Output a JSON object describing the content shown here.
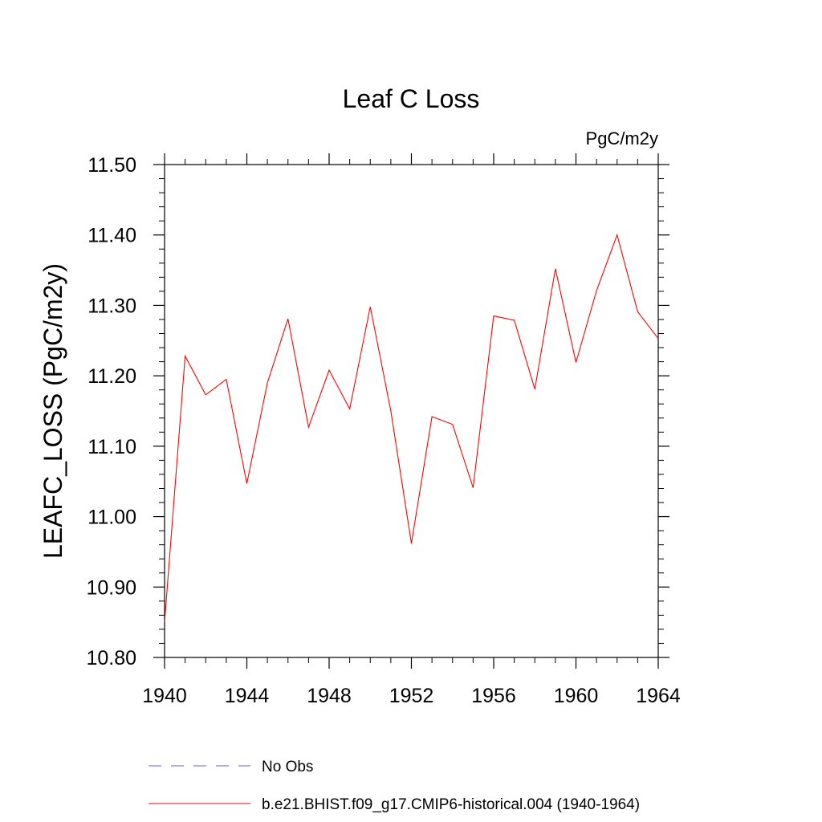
{
  "chart_data": {
    "type": "line",
    "title": "Leaf C Loss",
    "units_label": "PgC/m2y",
    "ylabel": "LEAFC_LOSS  (PgC/m2y)",
    "xlabel": "",
    "xlim": [
      1940,
      1964
    ],
    "ylim": [
      10.8,
      11.5
    ],
    "x_ticks": [
      "1940",
      "1944",
      "1948",
      "1952",
      "1956",
      "1960",
      "1964"
    ],
    "y_ticks": [
      "10.80",
      "10.90",
      "11.00",
      "11.10",
      "11.20",
      "11.30",
      "11.40",
      "11.50"
    ],
    "grid": false,
    "legend_position": "bottom",
    "x": [
      1940,
      1941,
      1942,
      1943,
      1944,
      1945,
      1946,
      1947,
      1948,
      1949,
      1950,
      1951,
      1952,
      1953,
      1954,
      1955,
      1956,
      1957,
      1958,
      1959,
      1960,
      1961,
      1962,
      1963,
      1964
    ],
    "series": [
      {
        "name": "b.e21.BHIST.f09_g17.CMIP6-historical.004 (1940-1964)",
        "color": "#ff0000",
        "values": [
          10.85,
          11.228,
          11.173,
          11.195,
          11.047,
          11.19,
          11.281,
          11.127,
          11.208,
          11.153,
          11.298,
          11.15,
          10.962,
          11.142,
          11.131,
          11.041,
          11.285,
          11.279,
          11.181,
          11.352,
          11.219,
          11.321,
          11.4,
          11.291,
          11.253
        ]
      }
    ],
    "legend": [
      {
        "label": "No Obs",
        "color": "#6a5acd",
        "dash": true
      },
      {
        "label": "b.e21.BHIST.f09_g17.CMIP6-historical.004 (1940-1964)",
        "color": "#ff0000",
        "dash": false
      }
    ]
  }
}
